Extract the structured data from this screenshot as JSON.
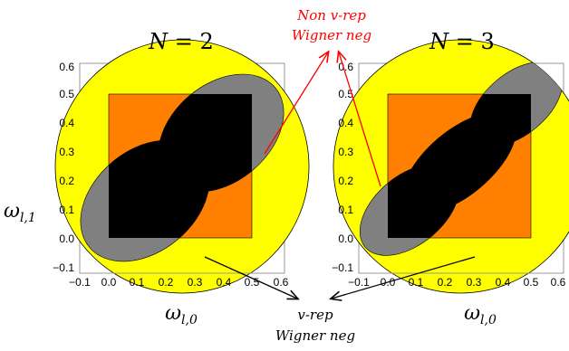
{
  "panels": [
    {
      "title_var": "N",
      "title_eq": " = ",
      "title_val": "2",
      "xlabel_main": "ω",
      "xlabel_sub": "l,0"
    },
    {
      "title_var": "N",
      "title_eq": " = ",
      "title_val": "3",
      "xlabel_main": "ω",
      "xlabel_sub": "l,0"
    }
  ],
  "ylabel": {
    "main": "ω",
    "sub": "l,1"
  },
  "x_ticks": [
    "−0.1",
    "0.0",
    "0.1",
    "0.2",
    "0.3",
    "0.4",
    "0.5",
    "0.6"
  ],
  "y_ticks": [
    "0.6",
    "0.5",
    "0.4",
    "0.3",
    "0.2",
    "0.1",
    "0.0",
    "−0.1"
  ],
  "annotations": {
    "top_line1": "Non v-rep",
    "top_line2": "Wigner neg",
    "bottom_line1": "v-rep",
    "bottom_line2": "Wigner neg"
  },
  "colors": {
    "circle": "#ffff00",
    "square": "#ff7f00",
    "gray_region": "#808080",
    "black_region": "#000000",
    "red_arrow": "#ff0000",
    "black_arrow": "#000000"
  }
}
